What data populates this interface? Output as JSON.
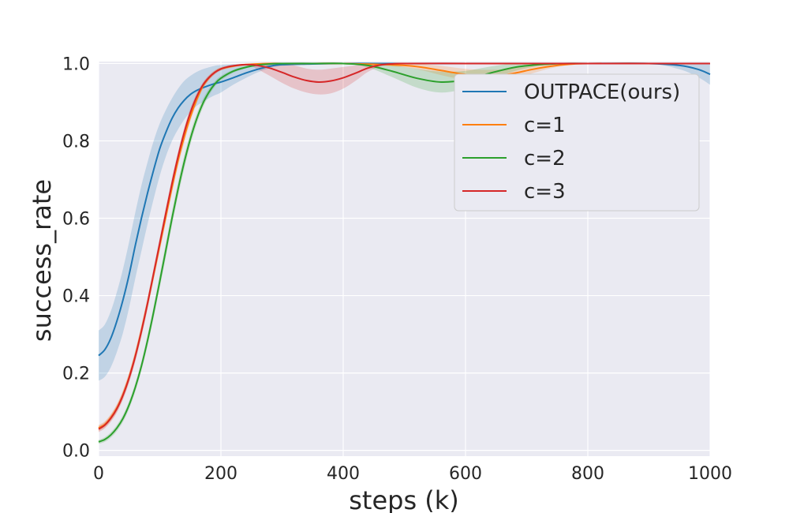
{
  "chart_data": {
    "type": "line",
    "xlabel": "steps (k)",
    "ylabel": "success_rate",
    "xlim": [
      0,
      1000
    ],
    "ylim": [
      -0.015,
      1.005
    ],
    "grid": true,
    "legend_position": "top-right",
    "x_ticks": [
      0,
      200,
      400,
      600,
      800,
      1000
    ],
    "y_ticks": [
      0.0,
      0.2,
      0.4,
      0.6,
      0.8,
      1.0
    ],
    "x_tick_labels": [
      "0",
      "200",
      "400",
      "600",
      "800",
      "1000"
    ],
    "y_tick_labels": [
      "0.0",
      "0.2",
      "0.4",
      "0.6",
      "0.8",
      "1.0"
    ],
    "series": [
      {
        "name": "OUTPACE(ours)",
        "color": "#1f77b4",
        "x": [
          0,
          10,
          20,
          30,
          40,
          50,
          60,
          70,
          80,
          90,
          100,
          110,
          120,
          130,
          140,
          150,
          160,
          170,
          180,
          190,
          200,
          220,
          240,
          260,
          280,
          300,
          350,
          400,
          450,
          500,
          600,
          700,
          800,
          900,
          950,
          980,
          1000
        ],
        "y": [
          0.245,
          0.26,
          0.29,
          0.335,
          0.39,
          0.455,
          0.53,
          0.6,
          0.665,
          0.725,
          0.78,
          0.822,
          0.858,
          0.885,
          0.905,
          0.92,
          0.93,
          0.937,
          0.943,
          0.948,
          0.952,
          0.963,
          0.975,
          0.985,
          0.993,
          0.997,
          0.999,
          1.0,
          1.0,
          1.0,
          1.0,
          1.0,
          1.0,
          1.0,
          0.995,
          0.985,
          0.972
        ],
        "lower": [
          0.18,
          0.19,
          0.215,
          0.255,
          0.305,
          0.37,
          0.445,
          0.515,
          0.585,
          0.65,
          0.71,
          0.76,
          0.8,
          0.83,
          0.855,
          0.875,
          0.89,
          0.9,
          0.91,
          0.918,
          0.925,
          0.945,
          0.962,
          0.977,
          0.988,
          0.994,
          0.998,
          1.0,
          1.0,
          1.0,
          1.0,
          1.0,
          1.0,
          1.0,
          0.985,
          0.965,
          0.945
        ],
        "upper": [
          0.31,
          0.325,
          0.36,
          0.41,
          0.47,
          0.54,
          0.615,
          0.685,
          0.745,
          0.8,
          0.845,
          0.88,
          0.91,
          0.935,
          0.955,
          0.968,
          0.978,
          0.985,
          0.99,
          0.994,
          0.996,
          0.998,
          0.999,
          1.0,
          1.0,
          1.0,
          1.0,
          1.0,
          1.0,
          1.0,
          1.0,
          1.0,
          1.0,
          1.0,
          1.0,
          1.0,
          1.0
        ]
      },
      {
        "name": "c=1",
        "color": "#ff7f0e",
        "x": [
          0,
          10,
          20,
          30,
          40,
          50,
          60,
          70,
          80,
          90,
          100,
          110,
          120,
          130,
          140,
          150,
          160,
          170,
          180,
          190,
          200,
          220,
          240,
          260,
          280,
          300,
          350,
          400,
          450,
          500,
          530,
          560,
          590,
          620,
          650,
          680,
          710,
          740,
          770,
          800,
          900,
          1000
        ],
        "y": [
          0.058,
          0.067,
          0.085,
          0.11,
          0.145,
          0.19,
          0.245,
          0.31,
          0.38,
          0.455,
          0.53,
          0.605,
          0.68,
          0.75,
          0.81,
          0.862,
          0.905,
          0.94,
          0.962,
          0.977,
          0.986,
          0.993,
          0.997,
          0.999,
          1.0,
          1.0,
          1.0,
          1.0,
          0.998,
          0.995,
          0.99,
          0.982,
          0.974,
          0.968,
          0.968,
          0.975,
          0.985,
          0.993,
          0.998,
          1.0,
          1.0,
          1.0
        ],
        "lower": [
          0.05,
          0.059,
          0.076,
          0.1,
          0.134,
          0.178,
          0.232,
          0.296,
          0.365,
          0.44,
          0.515,
          0.59,
          0.665,
          0.735,
          0.795,
          0.85,
          0.895,
          0.932,
          0.956,
          0.972,
          0.982,
          0.99,
          0.995,
          0.998,
          1.0,
          1.0,
          1.0,
          1.0,
          0.996,
          0.99,
          0.982,
          0.97,
          0.96,
          0.952,
          0.952,
          0.962,
          0.975,
          0.988,
          0.996,
          1.0,
          1.0,
          1.0
        ],
        "upper": [
          0.066,
          0.075,
          0.094,
          0.12,
          0.156,
          0.202,
          0.258,
          0.324,
          0.395,
          0.47,
          0.545,
          0.62,
          0.695,
          0.765,
          0.825,
          0.874,
          0.915,
          0.948,
          0.968,
          0.982,
          0.99,
          0.996,
          0.999,
          1.0,
          1.0,
          1.0,
          1.0,
          1.0,
          1.0,
          1.0,
          0.998,
          0.994,
          0.988,
          0.984,
          0.984,
          0.988,
          0.995,
          0.998,
          1.0,
          1.0,
          1.0,
          1.0
        ]
      },
      {
        "name": "c=2",
        "color": "#2ca02c",
        "x": [
          0,
          10,
          20,
          30,
          40,
          50,
          60,
          70,
          80,
          90,
          100,
          110,
          120,
          130,
          140,
          150,
          160,
          170,
          180,
          190,
          200,
          220,
          240,
          260,
          280,
          300,
          350,
          400,
          440,
          480,
          520,
          560,
          600,
          640,
          680,
          720,
          760,
          800,
          900,
          1000
        ],
        "y": [
          0.022,
          0.028,
          0.04,
          0.058,
          0.083,
          0.118,
          0.163,
          0.218,
          0.284,
          0.358,
          0.437,
          0.518,
          0.6,
          0.676,
          0.745,
          0.805,
          0.855,
          0.895,
          0.925,
          0.947,
          0.962,
          0.98,
          0.99,
          0.996,
          0.999,
          1.0,
          1.0,
          1.0,
          0.995,
          0.98,
          0.962,
          0.952,
          0.958,
          0.975,
          0.99,
          0.997,
          1.0,
          1.0,
          1.0,
          1.0
        ],
        "lower": [
          0.017,
          0.022,
          0.033,
          0.05,
          0.074,
          0.108,
          0.152,
          0.206,
          0.27,
          0.343,
          0.42,
          0.5,
          0.582,
          0.658,
          0.728,
          0.79,
          0.842,
          0.884,
          0.916,
          0.94,
          0.956,
          0.976,
          0.987,
          0.994,
          0.998,
          1.0,
          1.0,
          1.0,
          0.99,
          0.965,
          0.938,
          0.925,
          0.935,
          0.958,
          0.98,
          0.994,
          1.0,
          1.0,
          1.0,
          1.0
        ],
        "upper": [
          0.027,
          0.034,
          0.047,
          0.066,
          0.092,
          0.128,
          0.174,
          0.23,
          0.298,
          0.373,
          0.454,
          0.536,
          0.618,
          0.694,
          0.762,
          0.82,
          0.868,
          0.906,
          0.934,
          0.954,
          0.968,
          0.984,
          0.993,
          0.998,
          1.0,
          1.0,
          1.0,
          1.0,
          1.0,
          0.995,
          0.986,
          0.979,
          0.981,
          0.992,
          1.0,
          1.0,
          1.0,
          1.0,
          1.0,
          1.0
        ]
      },
      {
        "name": "c=3",
        "color": "#d62728",
        "x": [
          0,
          10,
          20,
          30,
          40,
          50,
          60,
          70,
          80,
          90,
          100,
          110,
          120,
          130,
          140,
          150,
          160,
          170,
          180,
          190,
          200,
          210,
          220,
          230,
          240,
          250,
          260,
          280,
          300,
          320,
          340,
          360,
          380,
          400,
          420,
          440,
          460,
          480,
          500,
          600,
          700,
          800,
          900,
          1000
        ],
        "y": [
          0.055,
          0.065,
          0.083,
          0.108,
          0.143,
          0.188,
          0.243,
          0.308,
          0.38,
          0.458,
          0.536,
          0.614,
          0.69,
          0.76,
          0.822,
          0.873,
          0.913,
          0.943,
          0.963,
          0.977,
          0.986,
          0.991,
          0.994,
          0.996,
          0.997,
          0.997,
          0.995,
          0.988,
          0.977,
          0.965,
          0.956,
          0.952,
          0.955,
          0.963,
          0.975,
          0.988,
          0.996,
          0.999,
          1.0,
          1.0,
          1.0,
          1.0,
          1.0,
          1.0
        ],
        "lower": [
          0.047,
          0.057,
          0.074,
          0.098,
          0.132,
          0.176,
          0.23,
          0.294,
          0.366,
          0.444,
          0.522,
          0.6,
          0.676,
          0.747,
          0.81,
          0.862,
          0.904,
          0.936,
          0.957,
          0.972,
          0.982,
          0.988,
          0.992,
          0.994,
          0.995,
          0.993,
          0.985,
          0.968,
          0.95,
          0.935,
          0.925,
          0.92,
          0.923,
          0.935,
          0.955,
          0.978,
          0.992,
          0.998,
          1.0,
          1.0,
          1.0,
          1.0,
          1.0,
          1.0
        ],
        "upper": [
          0.063,
          0.073,
          0.092,
          0.118,
          0.154,
          0.2,
          0.256,
          0.322,
          0.394,
          0.472,
          0.55,
          0.628,
          0.704,
          0.773,
          0.834,
          0.884,
          0.922,
          0.95,
          0.969,
          0.982,
          0.99,
          0.994,
          0.996,
          0.998,
          0.999,
          1.0,
          1.0,
          1.0,
          1.0,
          0.995,
          0.987,
          0.984,
          0.987,
          0.991,
          0.995,
          0.998,
          1.0,
          1.0,
          1.0,
          1.0,
          1.0,
          1.0,
          1.0,
          1.0
        ]
      }
    ]
  }
}
